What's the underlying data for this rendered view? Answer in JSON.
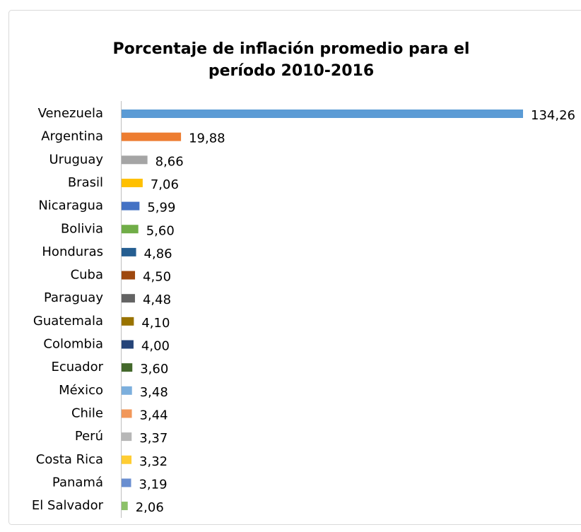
{
  "chart_data": {
    "type": "bar",
    "orientation": "horizontal",
    "title": "Porcentaje de inflación promedio para el período 2010-2016",
    "categories": [
      "Venezuela",
      "Argentina",
      "Uruguay",
      "Brasil",
      "Nicaragua",
      "Bolivia",
      "Honduras",
      "Cuba",
      "Paraguay",
      "Guatemala",
      "Colombia",
      "Ecuador",
      "México",
      "Chile",
      "Perú",
      "Costa Rica",
      "Panamá",
      "El Salvador"
    ],
    "values": [
      134.26,
      19.88,
      8.66,
      7.06,
      5.99,
      5.6,
      4.86,
      4.5,
      4.48,
      4.1,
      4.0,
      3.6,
      3.48,
      3.44,
      3.37,
      3.32,
      3.19,
      2.06
    ],
    "value_labels": [
      "134,26",
      "19,88",
      "8,66",
      "7,06",
      "5,99",
      "5,60",
      "4,86",
      "4,50",
      "4,48",
      "4,10",
      "4,00",
      "3,60",
      "3,48",
      "3,44",
      "3,37",
      "3,32",
      "3,19",
      "2,06"
    ],
    "colors": [
      "#5b9bd5",
      "#ed7d31",
      "#a5a5a5",
      "#ffc000",
      "#4472c4",
      "#70ad47",
      "#255e91",
      "#9e480e",
      "#636363",
      "#997300",
      "#264478",
      "#43682b",
      "#7cafdd",
      "#f1975a",
      "#b7b7b7",
      "#ffcd33",
      "#698ed0",
      "#8cc168"
    ]
  }
}
